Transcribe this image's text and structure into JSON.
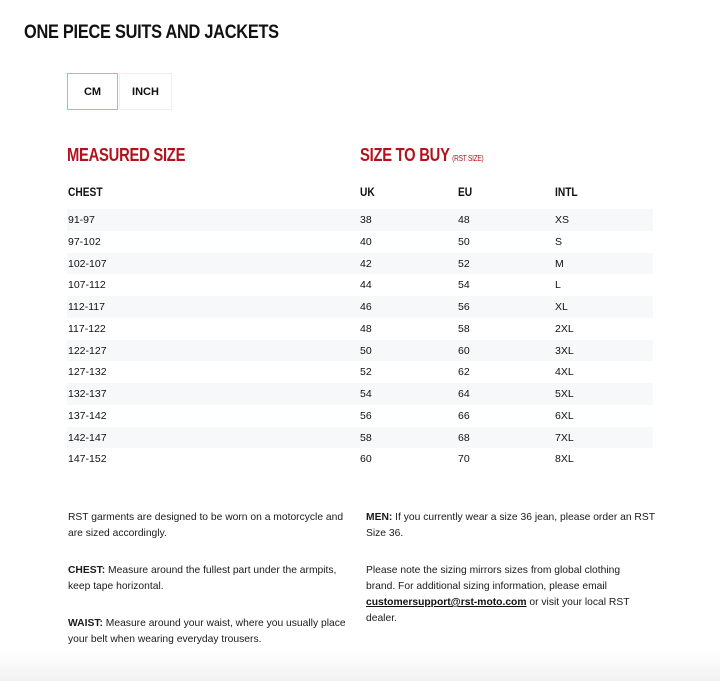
{
  "title": "ONE PIECE SUITS AND JACKETS",
  "units": {
    "cm": "CM",
    "inch": "INCH",
    "selected": "CM",
    "accent": "#b2121c"
  },
  "sections": {
    "measured": "MEASURED SIZE",
    "buy": "SIZE TO BUY",
    "buy_note": "(RST SIZE)"
  },
  "columns": [
    "CHEST",
    "UK",
    "EU",
    "INTL"
  ],
  "rows": [
    [
      "91-97",
      "38",
      "48",
      "XS"
    ],
    [
      "97-102",
      "40",
      "50",
      "S"
    ],
    [
      "102-107",
      "42",
      "52",
      "M"
    ],
    [
      "107-112",
      "44",
      "54",
      "L"
    ],
    [
      "112-117",
      "46",
      "56",
      "XL"
    ],
    [
      "117-122",
      "48",
      "58",
      "2XL"
    ],
    [
      "122-127",
      "50",
      "60",
      "3XL"
    ],
    [
      "127-132",
      "52",
      "62",
      "4XL"
    ],
    [
      "132-137",
      "54",
      "64",
      "5XL"
    ],
    [
      "137-142",
      "56",
      "66",
      "6XL"
    ],
    [
      "142-147",
      "58",
      "68",
      "7XL"
    ],
    [
      "147-152",
      "60",
      "70",
      "8XL"
    ]
  ],
  "notes": {
    "intro": "RST garments are designed to be worn on a motorcycle and are sized accordingly.",
    "chest_label": "CHEST:",
    "chest_text": " Measure around the fullest part under the armpits, keep tape horizontal.",
    "waist_label": "WAIST:",
    "waist_text": " Measure around your waist, where you usually place your belt when wearing everyday trousers.",
    "men_label": "MEN:",
    "men_text": " If you currently wear a size 36 jean, please order an RST Size 36.",
    "global_text": "Please note the sizing mirrors sizes from global clothing brand. For additional sizing information, please email ",
    "email": "customersupport@rst-moto.com",
    "global_tail": " or visit your local RST dealer."
  }
}
